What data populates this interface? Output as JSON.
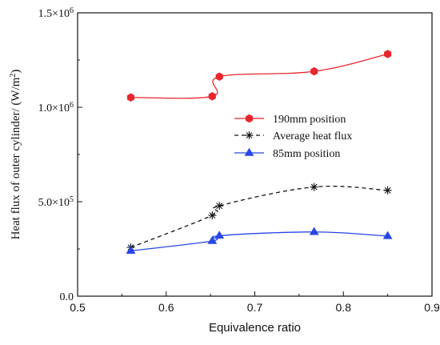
{
  "chart_data": {
    "type": "line",
    "xlabel": "Equivalence ratio",
    "ylabel": "Heat flux of outer cylinder/ (W/m",
    "ylabel_sup": "2",
    "ylabel_close": ")",
    "xlim": [
      0.5,
      0.9
    ],
    "ylim": [
      0,
      1500000
    ],
    "xticks": [
      0.5,
      0.6,
      0.7,
      0.8,
      0.9
    ],
    "xtick_labels": [
      "0.5",
      "0.6",
      "0.7",
      "0.8",
      "0.9"
    ],
    "yticks": [
      0,
      500000,
      1000000,
      1500000
    ],
    "ytick_labels": [
      {
        "base": "0.0",
        "exp": ""
      },
      {
        "base": "5.0×10",
        "exp": "5"
      },
      {
        "base": "1.0×10",
        "exp": "6"
      },
      {
        "base": "1.5×10",
        "exp": "6"
      }
    ],
    "grid": false,
    "legend_position": "center-right",
    "series": [
      {
        "name": "190mm position",
        "color": "#e8262c",
        "line_style": "solid",
        "marker": "hexagon",
        "x": [
          0.56,
          0.652,
          0.66,
          0.767,
          0.85
        ],
        "y": [
          1052000,
          1058000,
          1162000,
          1190000,
          1282000
        ]
      },
      {
        "name": "Average heat flux",
        "color": "#111111",
        "line_style": "dashed",
        "marker": "asterisk",
        "x": [
          0.56,
          0.652,
          0.66,
          0.767,
          0.85
        ],
        "y": [
          258000,
          428000,
          478000,
          578000,
          560000
        ]
      },
      {
        "name": "85mm  position",
        "color": "#2846e6",
        "line_style": "solid",
        "marker": "triangle",
        "x": [
          0.56,
          0.652,
          0.66,
          0.767,
          0.85
        ],
        "y": [
          240000,
          292000,
          320000,
          340000,
          318000
        ]
      }
    ]
  }
}
